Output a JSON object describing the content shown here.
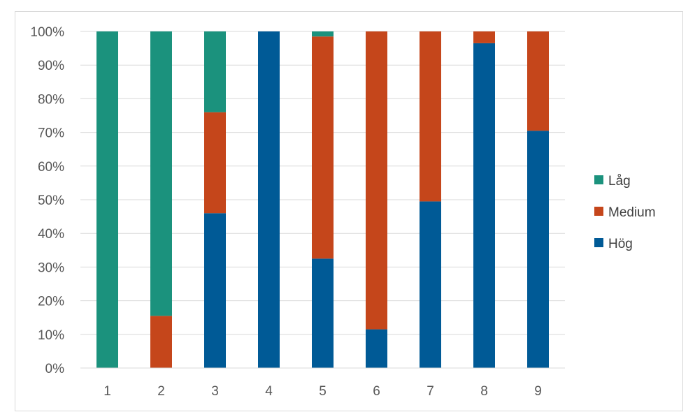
{
  "chart_data": {
    "type": "bar",
    "stacked": true,
    "percent_stacked": true,
    "categories": [
      "1",
      "2",
      "3",
      "4",
      "5",
      "6",
      "7",
      "8",
      "9"
    ],
    "series": [
      {
        "name": "Hög",
        "color": "#005a96",
        "values": [
          0,
          0,
          46,
          100,
          32.5,
          11.5,
          49.5,
          96.5,
          70.5
        ]
      },
      {
        "name": "Medium",
        "color": "#c5461b",
        "values": [
          0,
          15.5,
          30,
          0,
          66,
          88.5,
          50.5,
          3.5,
          29.5
        ]
      },
      {
        "name": "Låg",
        "color": "#1b927d",
        "values": [
          100,
          84.5,
          24,
          0,
          1.5,
          0,
          0,
          0,
          0
        ]
      }
    ],
    "y_ticks": [
      "0%",
      "10%",
      "20%",
      "30%",
      "40%",
      "50%",
      "60%",
      "70%",
      "80%",
      "90%",
      "100%"
    ],
    "ylim": [
      0,
      100
    ],
    "grid": true,
    "legend": {
      "position": "right",
      "entries": [
        "Låg",
        "Medium",
        "Hög"
      ]
    },
    "title": "",
    "xlabel": "",
    "ylabel": ""
  }
}
